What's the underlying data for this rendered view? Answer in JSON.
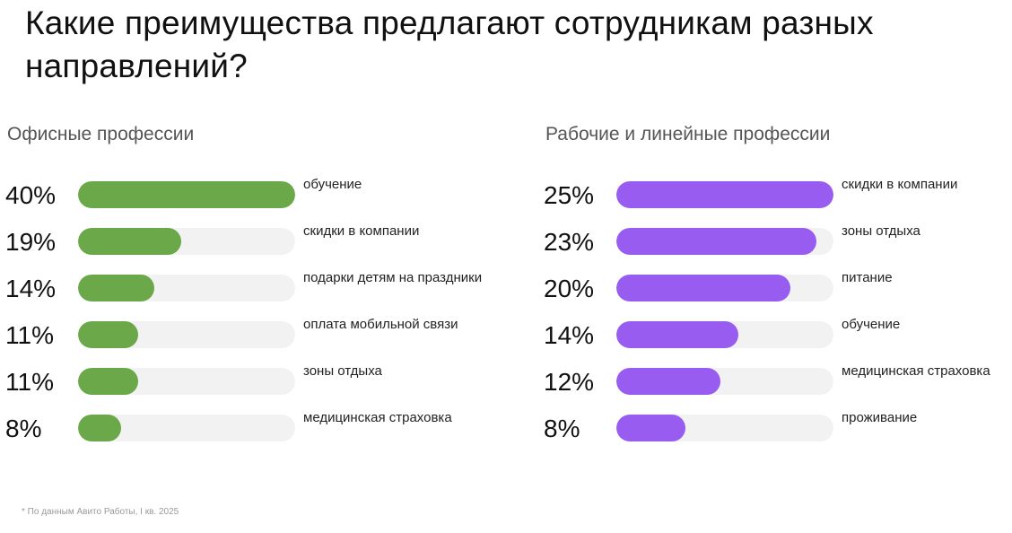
{
  "title": "Какие преимущества предлагают сотрудникам разных направлений?",
  "footnote": "* По данным Авито Работы, I кв. 2025",
  "colors": {
    "office_bar": "#6ba84a",
    "workers_bar": "#985cf0",
    "track": "#f2f2f2"
  },
  "chart_data": [
    {
      "type": "bar",
      "orientation": "horizontal",
      "title": "Офисные профессии",
      "unit": "%",
      "xlim": [
        0,
        40
      ],
      "color": "#6ba84a",
      "categories": [
        "обучение",
        "скидки в компании",
        "подарки детям на праздники",
        "оплата мобильной связи",
        "зоны отдыха",
        "медицинская страховка"
      ],
      "values": [
        40,
        19,
        14,
        11,
        11,
        8
      ],
      "value_labels": [
        "40%",
        "19%",
        "14%",
        "11%",
        "11%",
        "8%"
      ]
    },
    {
      "type": "bar",
      "orientation": "horizontal",
      "title": "Рабочие и линейные профессии",
      "unit": "%",
      "xlim": [
        0,
        25
      ],
      "color": "#985cf0",
      "categories": [
        "скидки в компании",
        "зоны отдыха",
        "питание",
        "обучение",
        "медицинская страховка",
        "проживание"
      ],
      "values": [
        25,
        23,
        20,
        14,
        12,
        8
      ],
      "value_labels": [
        "25%",
        "23%",
        "20%",
        "14%",
        "12%",
        "8%"
      ]
    }
  ]
}
